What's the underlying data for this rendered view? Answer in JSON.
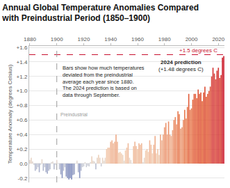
{
  "chart_data": {
    "type": "bar",
    "title": "Annual Global Temperature Anomalies Compared with Preindustrial Period (1850–1900)",
    "y_label": "Temperature Anomaly (degrees Celsius)",
    "x": [
      1880,
      1881,
      1882,
      1883,
      1884,
      1885,
      1886,
      1887,
      1888,
      1889,
      1890,
      1891,
      1892,
      1893,
      1894,
      1895,
      1896,
      1897,
      1898,
      1899,
      1900,
      1901,
      1902,
      1903,
      1904,
      1905,
      1906,
      1907,
      1908,
      1909,
      1910,
      1911,
      1912,
      1913,
      1914,
      1915,
      1916,
      1917,
      1918,
      1919,
      1920,
      1921,
      1922,
      1923,
      1924,
      1925,
      1926,
      1927,
      1928,
      1929,
      1930,
      1931,
      1932,
      1933,
      1934,
      1935,
      1936,
      1937,
      1938,
      1939,
      1940,
      1941,
      1942,
      1943,
      1944,
      1945,
      1946,
      1947,
      1948,
      1949,
      1950,
      1951,
      1952,
      1953,
      1954,
      1955,
      1956,
      1957,
      1958,
      1959,
      1960,
      1961,
      1962,
      1963,
      1964,
      1965,
      1966,
      1967,
      1968,
      1969,
      1970,
      1971,
      1972,
      1973,
      1974,
      1975,
      1976,
      1977,
      1978,
      1979,
      1980,
      1981,
      1982,
      1983,
      1984,
      1985,
      1986,
      1987,
      1988,
      1989,
      1990,
      1991,
      1992,
      1993,
      1994,
      1995,
      1996,
      1997,
      1998,
      1999,
      2000,
      2001,
      2002,
      2003,
      2004,
      2005,
      2006,
      2007,
      2008,
      2009,
      2010,
      2011,
      2012,
      2013,
      2014,
      2015,
      2016,
      2017,
      2018,
      2019,
      2020,
      2021,
      2022,
      2023,
      2024
    ],
    "values": [
      0.05,
      0.08,
      0.03,
      -0.02,
      -0.1,
      -0.08,
      -0.05,
      -0.12,
      -0.02,
      0.06,
      -0.1,
      -0.05,
      -0.12,
      -0.14,
      -0.1,
      -0.08,
      0.02,
      0.03,
      -0.08,
      -0.02,
      0.05,
      0.0,
      -0.08,
      -0.15,
      -0.2,
      -0.1,
      -0.05,
      -0.18,
      -0.2,
      -0.22,
      -0.2,
      -0.22,
      -0.16,
      -0.15,
      0.0,
      0.04,
      -0.12,
      -0.2,
      -0.1,
      -0.05,
      -0.04,
      0.02,
      -0.05,
      -0.03,
      -0.04,
      0.02,
      0.1,
      0.04,
      0.03,
      -0.08,
      0.08,
      0.12,
      0.08,
      -0.04,
      0.08,
      0.04,
      0.08,
      0.2,
      0.22,
      0.22,
      0.3,
      0.32,
      0.28,
      0.3,
      0.4,
      0.3,
      0.15,
      0.16,
      0.14,
      0.12,
      0.04,
      0.18,
      0.22,
      0.28,
      0.08,
      0.05,
      0.0,
      0.24,
      0.3,
      0.24,
      0.2,
      0.28,
      0.26,
      0.28,
      0.02,
      0.08,
      0.18,
      0.2,
      0.16,
      0.32,
      0.26,
      0.14,
      0.26,
      0.38,
      0.14,
      0.2,
      0.12,
      0.4,
      0.32,
      0.4,
      0.5,
      0.56,
      0.4,
      0.58,
      0.4,
      0.38,
      0.46,
      0.6,
      0.64,
      0.54,
      0.72,
      0.68,
      0.48,
      0.5,
      0.6,
      0.74,
      0.62,
      0.78,
      0.96,
      0.74,
      0.76,
      0.88,
      0.96,
      0.96,
      0.9,
      1.02,
      0.96,
      0.98,
      0.86,
      0.98,
      1.06,
      0.92,
      0.96,
      1.0,
      1.06,
      1.2,
      1.32,
      1.24,
      1.16,
      1.28,
      1.32,
      1.18,
      1.22,
      1.46,
      1.48
    ],
    "xlim": [
      1879.5,
      2024.5
    ],
    "xticks": [
      1880,
      1900,
      1920,
      1940,
      1960,
      1980,
      2000,
      2020
    ],
    "ylim": [
      -0.26,
      1.62
    ],
    "yticks": [
      -0.2,
      {
        "value": 0,
        "label": "0.0"
      },
      {
        "value": 0.2,
        "label": "+0.2"
      },
      {
        "value": 0.4,
        "label": "+0.4"
      },
      {
        "value": 0.6,
        "label": "+0.6"
      },
      {
        "value": 0.8,
        "label": "+0.8"
      },
      {
        "value": 1.0,
        "label": "+1.0"
      },
      {
        "value": 1.2,
        "label": "+1.2"
      },
      {
        "value": 1.4,
        "label": "+1.4"
      },
      {
        "value": 1.6,
        "label": "+1.6"
      }
    ],
    "grid": true,
    "reference_lines": [
      {
        "y": 1.5,
        "label": "+1.5 degrees C",
        "line_style": "dashed",
        "color": "#c8102e"
      },
      {
        "x": 1900,
        "label": "Preindustrial",
        "line_style": "dashed",
        "color": "#9a9a9a"
      }
    ],
    "annotations": [
      {
        "text": [
          "Bars show how much temperatures",
          "deviated from the preindustrial",
          "average each year since 1880.",
          "The 2024 prediction is based on",
          "data through September."
        ],
        "x": 1903,
        "y": 1.38
      },
      {
        "text": [
          "2024 prediction",
          "(+1.48 degrees C)"
        ],
        "x": 1992,
        "y": 1.35
      }
    ]
  }
}
